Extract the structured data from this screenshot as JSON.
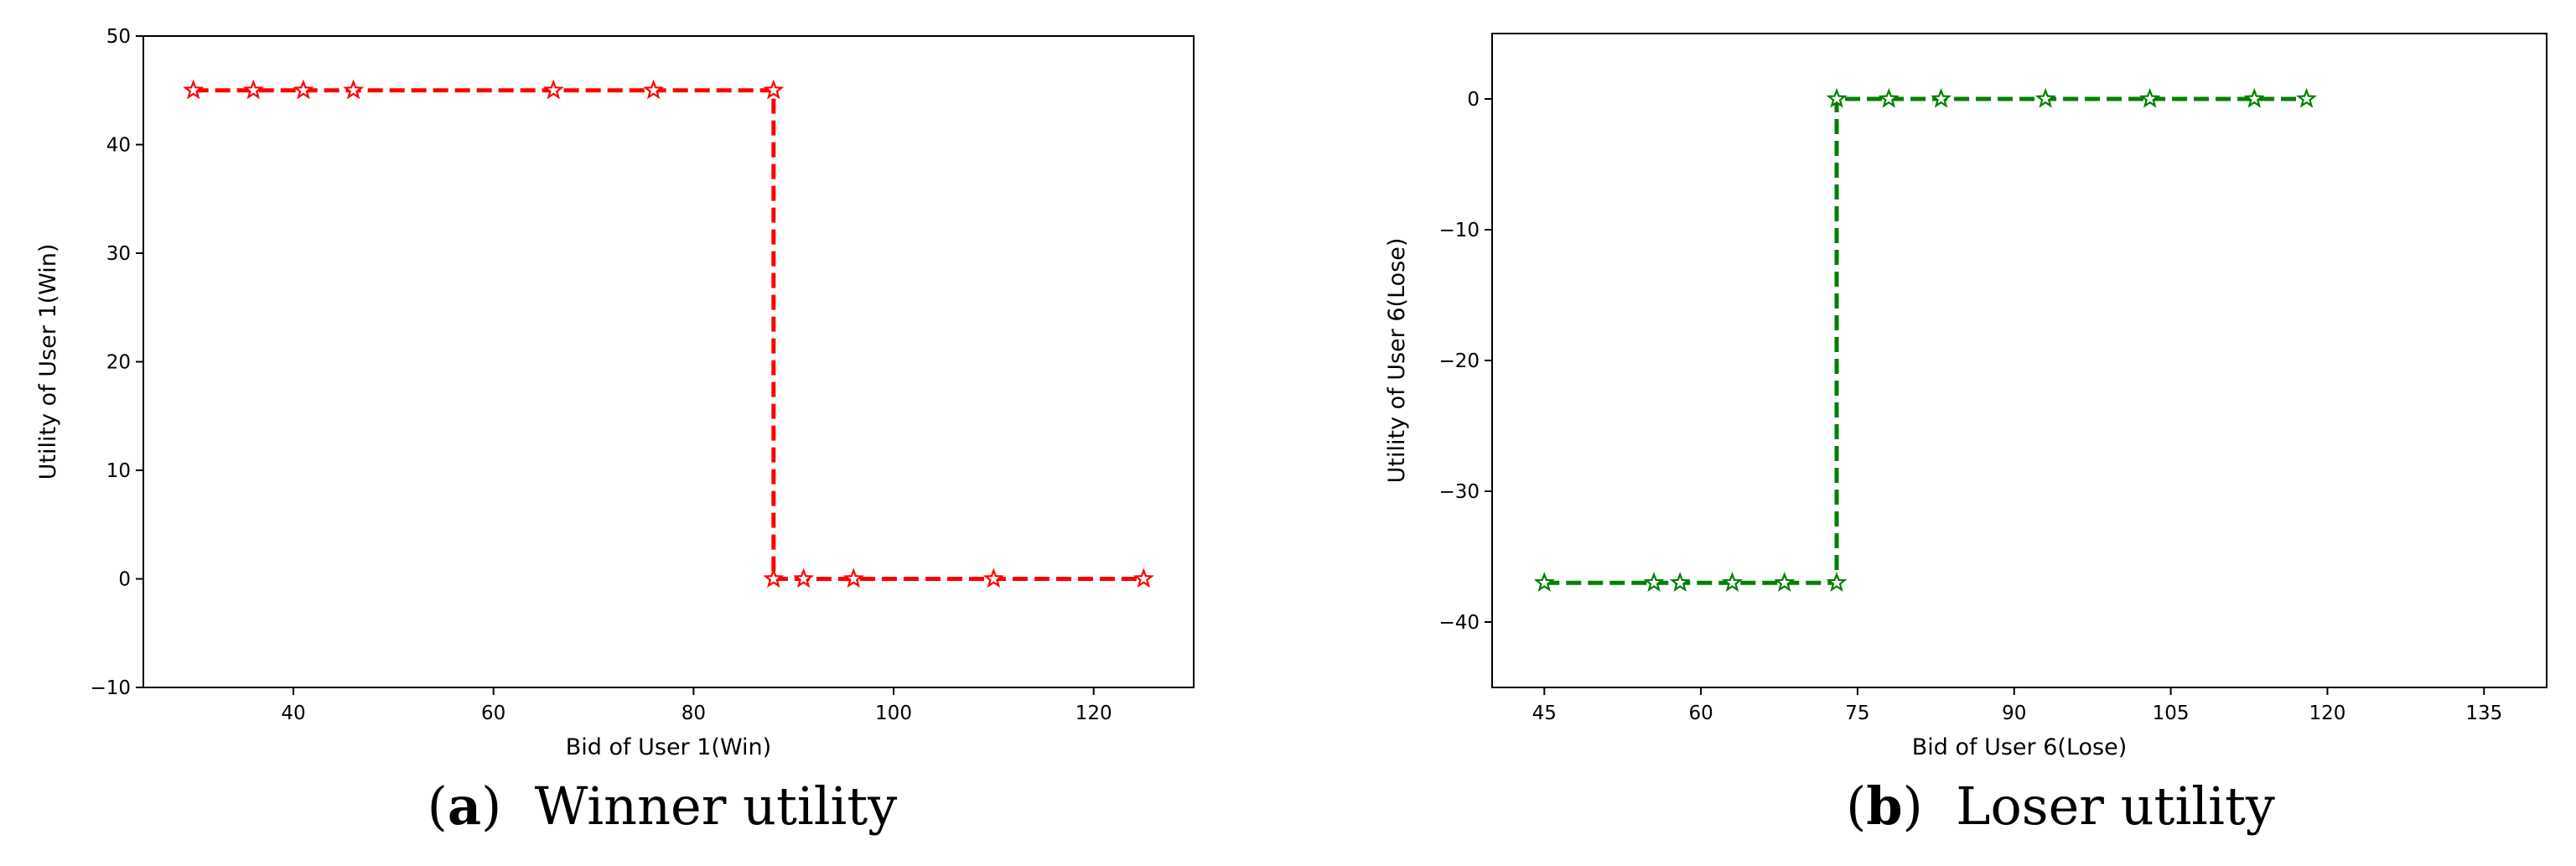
{
  "chart_data": [
    {
      "type": "line",
      "caption": {
        "letter": "a",
        "text": "Winner utility"
      },
      "xlabel": "Bid of User 1(Win)",
      "ylabel": "Utility of User 1(Win)",
      "xlim": [
        25,
        130
      ],
      "ylim": [
        -10,
        50
      ],
      "xticks": [
        40,
        60,
        80,
        100,
        120
      ],
      "yticks": [
        -10,
        0,
        10,
        20,
        30,
        40,
        50
      ],
      "grid": false,
      "series": [
        {
          "color": "#ff0000",
          "line_style": "dashed",
          "marker": "star-outline",
          "x": [
            30,
            36,
            41,
            46,
            66,
            76,
            88,
            88,
            91,
            96,
            110,
            125
          ],
          "y": [
            45,
            45,
            45,
            45,
            45,
            45,
            45,
            0,
            0,
            0,
            0,
            0
          ]
        }
      ]
    },
    {
      "type": "line",
      "caption": {
        "letter": "b",
        "text": "Loser utility"
      },
      "xlabel": "Bid of User 6(Lose)",
      "ylabel": "Utility of User 6(Lose)",
      "xlim": [
        40,
        141
      ],
      "ylim": [
        -45,
        5
      ],
      "xticks": [
        45,
        60,
        75,
        90,
        105,
        120,
        135
      ],
      "yticks": [
        -40,
        -30,
        -20,
        -10,
        0
      ],
      "grid": false,
      "series": [
        {
          "color": "#008000",
          "line_style": "dashed",
          "marker": "star-outline",
          "x": [
            45,
            55.5,
            58,
            63,
            68,
            73,
            73,
            78,
            83,
            93,
            103,
            113,
            118
          ],
          "y": [
            -37,
            -37,
            -37,
            -37,
            -37,
            -37,
            0,
            0,
            0,
            0,
            0,
            0,
            0
          ]
        }
      ]
    }
  ]
}
